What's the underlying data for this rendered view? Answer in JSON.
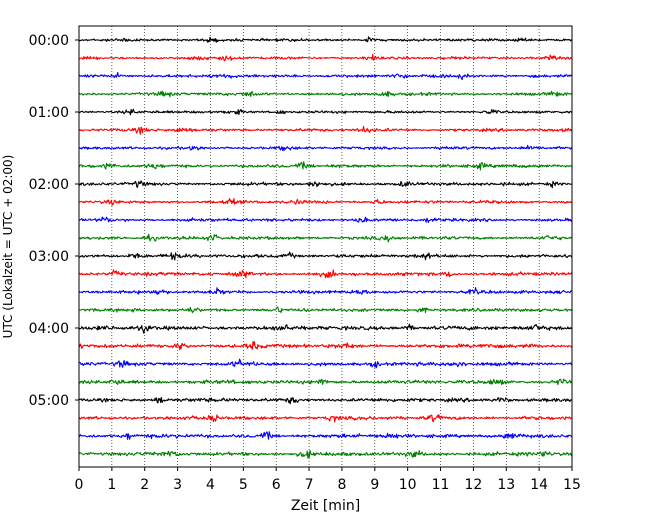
{
  "chart_data": {
    "type": "line",
    "title": "",
    "xlabel": "Zeit  [min]",
    "ylabel": "UTC (Lokalzeit = UTC + 02:00)",
    "xlim": [
      0,
      15
    ],
    "x_ticks": [
      0,
      1,
      2,
      3,
      4,
      5,
      6,
      7,
      8,
      9,
      10,
      11,
      12,
      13,
      14,
      15
    ],
    "y_tick_labels": [
      "00:00",
      "01:00",
      "02:00",
      "03:00",
      "04:00",
      "05:00"
    ],
    "grid": "vertical dotted",
    "legend": "none",
    "trace_colors": [
      "#000000",
      "#ff0000",
      "#0000ff",
      "#008000"
    ],
    "series": [
      {
        "start": "00:00",
        "color": "#000000",
        "amp": 1.0,
        "events": [
          1.4,
          4.0,
          8.8,
          13.5
        ]
      },
      {
        "start": "00:15",
        "color": "#ff0000",
        "amp": 1.0,
        "events": [
          3.7,
          4.5,
          8.9,
          14.4
        ]
      },
      {
        "start": "00:30",
        "color": "#0000ff",
        "amp": 1.1,
        "events": [
          1.2,
          4.5,
          9.8,
          11.7
        ]
      },
      {
        "start": "00:45",
        "color": "#008000",
        "amp": 1.1,
        "events": [
          2.6,
          5.2,
          9.3,
          14.5
        ]
      },
      {
        "start": "01:00",
        "color": "#000000",
        "amp": 1.0,
        "events": [
          1.6,
          4.8,
          6.1,
          12.5
        ]
      },
      {
        "start": "01:15",
        "color": "#ff0000",
        "amp": 1.1,
        "events": [
          1.9,
          3.1,
          8.7
        ]
      },
      {
        "start": "01:30",
        "color": "#0000ff",
        "amp": 1.0,
        "events": [
          3.5,
          6.3,
          11.2,
          13.8
        ]
      },
      {
        "start": "01:45",
        "color": "#008000",
        "amp": 1.2,
        "events": [
          0.9,
          2.3,
          6.8,
          12.2
        ]
      },
      {
        "start": "02:00",
        "color": "#000000",
        "amp": 1.2,
        "events": [
          1.8,
          7.2,
          9.9,
          14.4
        ]
      },
      {
        "start": "02:15",
        "color": "#ff0000",
        "amp": 1.1,
        "events": [
          1.0,
          4.6,
          6.6,
          9.1
        ]
      },
      {
        "start": "02:30",
        "color": "#0000ff",
        "amp": 1.1,
        "events": [
          0.8,
          3.4,
          8.6,
          10.7
        ]
      },
      {
        "start": "02:45",
        "color": "#008000",
        "amp": 1.2,
        "events": [
          2.2,
          4.1,
          9.4,
          14.3
        ]
      },
      {
        "start": "03:00",
        "color": "#000000",
        "amp": 1.3,
        "events": [
          1.7,
          2.9,
          6.4,
          10.5
        ]
      },
      {
        "start": "03:15",
        "color": "#ff0000",
        "amp": 1.3,
        "events": [
          1.1,
          5.0,
          7.6,
          11.3
        ]
      },
      {
        "start": "03:30",
        "color": "#0000ff",
        "amp": 1.2,
        "events": [
          2.4,
          4.2,
          8.5,
          12.0
        ]
      },
      {
        "start": "03:45",
        "color": "#008000",
        "amp": 1.2,
        "events": [
          3.4,
          6.0,
          10.4
        ]
      },
      {
        "start": "04:00",
        "color": "#000000",
        "amp": 1.5,
        "events": [
          2.0,
          6.2,
          10.0,
          13.9
        ]
      },
      {
        "start": "04:15",
        "color": "#ff0000",
        "amp": 1.4,
        "events": [
          3.1,
          5.3,
          8.1,
          12.4
        ]
      },
      {
        "start": "04:30",
        "color": "#0000ff",
        "amp": 1.4,
        "events": [
          1.3,
          4.9,
          9.0,
          11.5
        ]
      },
      {
        "start": "04:45",
        "color": "#008000",
        "amp": 1.4,
        "events": [
          1.1,
          7.4,
          12.7,
          14.7
        ]
      },
      {
        "start": "05:00",
        "color": "#000000",
        "amp": 1.4,
        "events": [
          2.5,
          6.5,
          12.9
        ]
      },
      {
        "start": "05:15",
        "color": "#ff0000",
        "amp": 1.3,
        "events": [
          4.1,
          7.7,
          10.8
        ]
      },
      {
        "start": "05:30",
        "color": "#0000ff",
        "amp": 1.4,
        "events": [
          1.5,
          5.7,
          9.5,
          13.1
        ]
      },
      {
        "start": "05:45",
        "color": "#008000",
        "amp": 1.4,
        "events": [
          2.8,
          6.9,
          10.2,
          14.1
        ]
      }
    ]
  }
}
